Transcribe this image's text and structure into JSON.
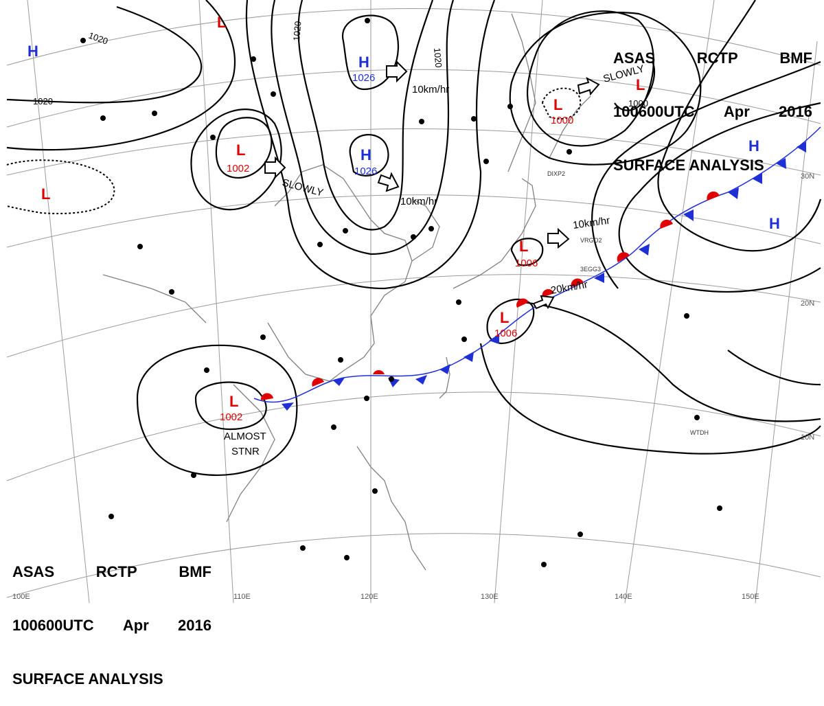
{
  "header": {
    "line1": [
      "ASAS",
      "RCTP",
      "BMF"
    ],
    "line2": [
      "100600UTC",
      "Apr",
      "2016"
    ],
    "line3": "SURFACE ANALYSIS"
  },
  "colors": {
    "high": "#1f2fd6",
    "low": "#e00000",
    "warm_front": "#e00000",
    "cold_front": "#1f2fd6",
    "isobar": "#000000",
    "grid": "#9a9a9a",
    "coast": "#808080"
  },
  "latitude_labels": [
    "30N",
    "20N",
    "10N"
  ],
  "longitude_labels": [
    "100E",
    "110E",
    "120E",
    "130E",
    "140E",
    "150E"
  ],
  "pressure_systems": [
    {
      "type": "H",
      "value": "",
      "id": "h-nw"
    },
    {
      "type": "L",
      "value": "",
      "id": "l-north"
    },
    {
      "type": "H",
      "value": "1026",
      "id": "h-north"
    },
    {
      "type": "H",
      "value": "1026",
      "id": "h-center"
    },
    {
      "type": "L",
      "value": "1002",
      "id": "l-sichuan"
    },
    {
      "type": "L",
      "value": "",
      "id": "l-west"
    },
    {
      "type": "L",
      "value": "1000",
      "id": "l-sakhalin"
    },
    {
      "type": "L",
      "value": "",
      "id": "l-okhotsk"
    },
    {
      "type": "L",
      "value": "1006",
      "id": "l-japan"
    },
    {
      "type": "L",
      "value": "1006",
      "id": "l-taiwan"
    },
    {
      "type": "L",
      "value": "1002",
      "id": "l-south"
    },
    {
      "type": "H",
      "value": "",
      "id": "h-east1"
    },
    {
      "type": "H",
      "value": "",
      "id": "h-east2"
    }
  ],
  "isobar_labels": [
    "1020",
    "1020",
    "1020",
    "1020",
    "1000"
  ],
  "motion_labels": [
    "10km/hr",
    "SLOWLY",
    "10km/hr",
    "SLOWLY",
    "10km/hr",
    "20km/hr",
    "ALMOST",
    "STNR"
  ],
  "station_labels": [
    "DIXP2",
    "VRGO2",
    "3EGG3",
    "WTDH"
  ]
}
